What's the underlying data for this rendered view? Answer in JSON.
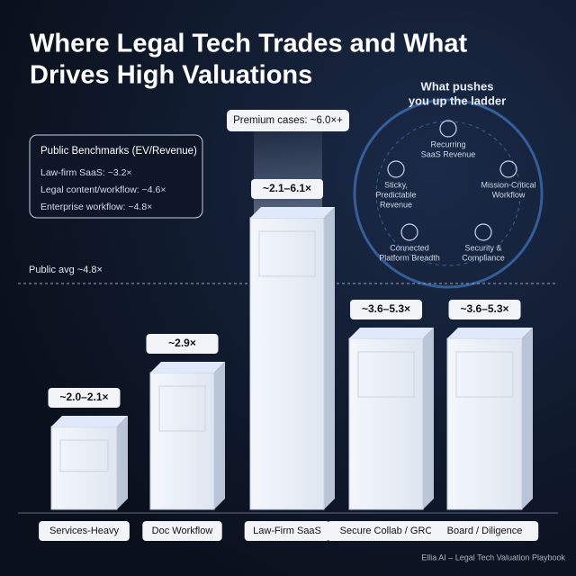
{
  "title_lines": [
    "Where Legal Tech Trades and What",
    "Drives High Valuations"
  ],
  "ladder": {
    "title_lines": [
      "What pushes",
      "you up the ladder"
    ],
    "items": [
      [
        "Recurring",
        "SaaS Revenue"
      ],
      [
        "Mission-Critical",
        "Workflow"
      ],
      [
        "Security &",
        "Compliance"
      ],
      [
        "Connected",
        "Platform Breadth"
      ],
      [
        "Sticky,",
        "Predictable",
        "Revenue"
      ]
    ]
  },
  "premium_label": "Premium cases: ~6.0×+",
  "benchmarks": {
    "title": "Public Benchmarks (EV/Revenue)",
    "lines": [
      "Law-firm SaaS: ~3.2×",
      "Legal content/workflow: ~4.6×",
      "Enterprise workflow: ~4.8×"
    ]
  },
  "public_avg": "Public avg ~4.8×",
  "pillars": [
    {
      "label": "Services-Heavy",
      "multiple": "~2.0–2.1×"
    },
    {
      "label": "Doc Workflow",
      "multiple": "~2.9×"
    },
    {
      "label": "Law-Firm SaaS",
      "multiple": "~2.1–6.1×"
    },
    {
      "label": "Secure Collab / GRC",
      "multiple": "~3.6–5.3×"
    },
    {
      "label": "Board / Diligence",
      "multiple": "~3.6–5.3×"
    }
  ],
  "footer": "Ellia AI – Legal Tech Valuation Playbook"
}
